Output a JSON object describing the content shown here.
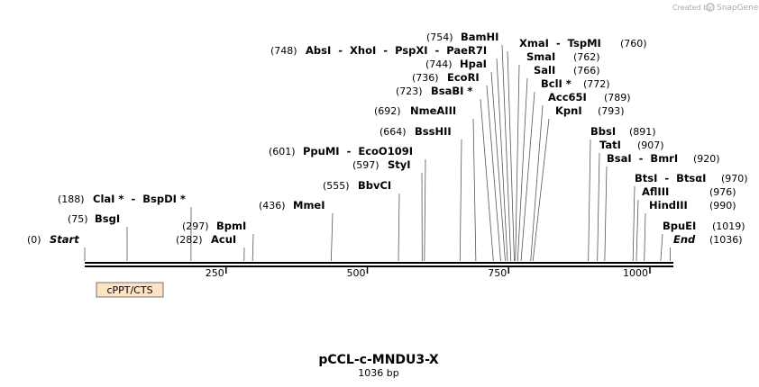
{
  "watermark": {
    "prefix": "Created by",
    "brand": "SnapGene"
  },
  "map": {
    "title": "pCCL-c-MNDU3-X",
    "length_label": "1036 bp",
    "ruler_ticks": [
      250,
      500,
      750,
      1000
    ],
    "feature": {
      "name": "cPPT/CTS"
    },
    "ends": [
      {
        "pos": 0,
        "pos_label": "(0)",
        "name": "Start"
      },
      {
        "pos": 1036,
        "pos_label": "(1036)",
        "name": "End"
      }
    ],
    "sites": [
      {
        "pos": 75,
        "pos_label": "(75)",
        "name": "BsgI"
      },
      {
        "pos": 188,
        "pos_label": "(188)",
        "name": "ClaI *  -  BspDI *"
      },
      {
        "pos": 282,
        "pos_label": "(282)",
        "name": "AcuI"
      },
      {
        "pos": 297,
        "pos_label": "(297)",
        "name": "BpmI"
      },
      {
        "pos": 436,
        "pos_label": "(436)",
        "name": "MmeI"
      },
      {
        "pos": 555,
        "pos_label": "(555)",
        "name": "BbvCI"
      },
      {
        "pos": 597,
        "pos_label": "(597)",
        "name": "StyI"
      },
      {
        "pos": 601,
        "pos_label": "(601)",
        "name": "PpuMI  -  EcoO109I"
      },
      {
        "pos": 664,
        "pos_label": "(664)",
        "name": "BssHII"
      },
      {
        "pos": 692,
        "pos_label": "(692)",
        "name": "NmeAIII"
      },
      {
        "pos": 723,
        "pos_label": "(723)",
        "name": "BsaBI *"
      },
      {
        "pos": 736,
        "pos_label": "(736)",
        "name": "EcoRI"
      },
      {
        "pos": 744,
        "pos_label": "(744)",
        "name": "HpaI"
      },
      {
        "pos": 748,
        "pos_label": "(748)",
        "name": "AbsI  -  XhoI  -  PspXI  -  PaeR7I"
      },
      {
        "pos": 754,
        "pos_label": "(754)",
        "name": "BamHI"
      },
      {
        "pos": 760,
        "pos_label": "(760)",
        "name": "XmaI  -  TspMI"
      },
      {
        "pos": 762,
        "pos_label": "(762)",
        "name": "SmaI"
      },
      {
        "pos": 766,
        "pos_label": "(766)",
        "name": "SalI"
      },
      {
        "pos": 772,
        "pos_label": "(772)",
        "name": "BclI *"
      },
      {
        "pos": 789,
        "pos_label": "(789)",
        "name": "Acc65I"
      },
      {
        "pos": 793,
        "pos_label": "(793)",
        "name": "KpnI"
      },
      {
        "pos": 891,
        "pos_label": "(891)",
        "name": "BbsI"
      },
      {
        "pos": 907,
        "pos_label": "(907)",
        "name": "TatI"
      },
      {
        "pos": 920,
        "pos_label": "(920)",
        "name": "BsaI  -  BmrI"
      },
      {
        "pos": 970,
        "pos_label": "(970)",
        "name": "BtsI  -  BtsαI"
      },
      {
        "pos": 976,
        "pos_label": "(976)",
        "name": "AflIII"
      },
      {
        "pos": 990,
        "pos_label": "(990)",
        "name": "HindIII"
      },
      {
        "pos": 1019,
        "pos_label": "(1019)",
        "name": "BpuEI"
      }
    ]
  }
}
